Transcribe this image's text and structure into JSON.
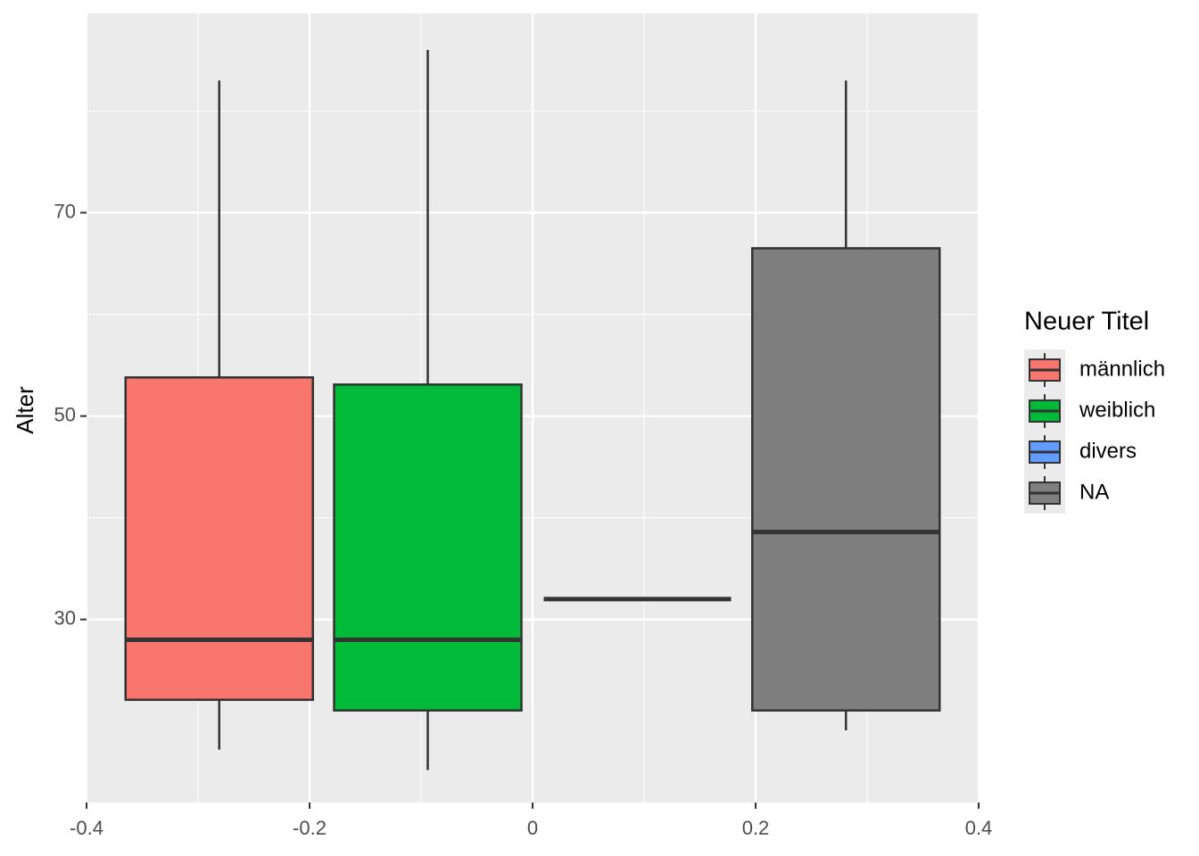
{
  "chart_data": {
    "type": "boxplot",
    "y_label": "Alter",
    "legend_title": "Neuer Titel",
    "xlim": [
      -0.4,
      0.4
    ],
    "ylim": [
      12,
      89.6
    ],
    "xticks": [
      -0.4,
      -0.2,
      0.0,
      0.2,
      0.4
    ],
    "yticks": [
      30,
      50,
      70
    ],
    "x_minor_grid": [
      -0.3,
      -0.1,
      0.1,
      0.3
    ],
    "y_minor_grid": [
      40,
      60,
      80
    ],
    "grid": true,
    "legend_position": "right",
    "box_width": 0.168,
    "series": [
      {
        "name": "männlich",
        "color": "#F8766D",
        "x": -0.281,
        "low": 17.2,
        "q1": 22.1,
        "median": 28,
        "q3": 53.8,
        "high": 83
      },
      {
        "name": "weiblich",
        "color": "#00BA38",
        "x": -0.094,
        "low": 15.2,
        "q1": 21.05,
        "median": 28,
        "q3": 53.1,
        "high": 86
      },
      {
        "name": "divers",
        "color": "#619CFF",
        "x": 0.094,
        "low": 32,
        "q1": 32,
        "median": 32,
        "q3": 32,
        "high": 32
      },
      {
        "name": "NA",
        "color": "#7F7F7F",
        "x": 0.281,
        "low": 19.1,
        "q1": 21.05,
        "median": 38.6,
        "q3": 66.5,
        "high": 83
      }
    ]
  }
}
